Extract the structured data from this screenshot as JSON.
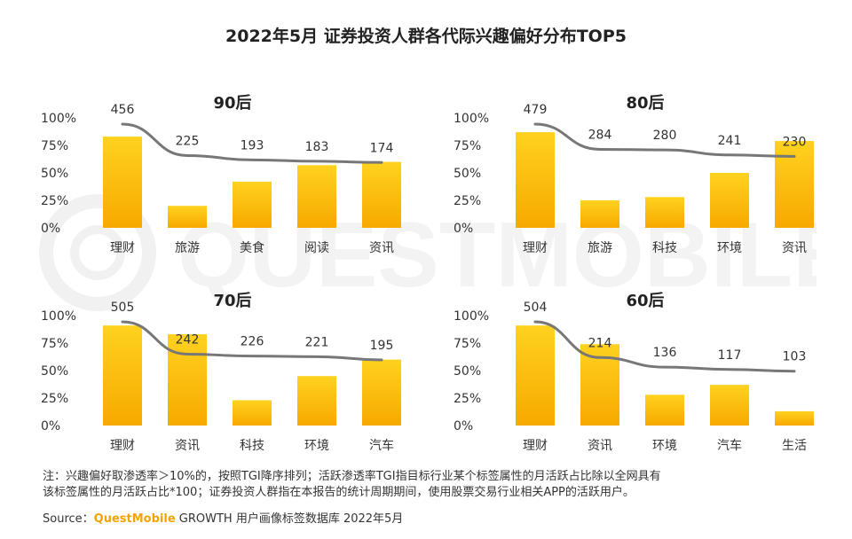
{
  "title": "2022年5月 证券投资人群各代际兴趣偏好分布TOP5",
  "watermark": "QUESTMOBILE",
  "y_ticks": [
    "100%",
    "75%",
    "50%",
    "25%",
    "0%"
  ],
  "notes": [
    "注：兴趣偏好取渗透率＞10%的，按照TGI降序排列；活跃渗透率TGI指目标行业某个标签属性的月活跃占比除以全网具有",
    "该标签属性的月活跃占比*100；证券投资人群指在本报告的统计周期期间，使用股票交易行业相关APP的活跃用户。"
  ],
  "source": {
    "prefix": "Source：",
    "brand": "QuestMobile",
    "suffix": " GROWTH 用户画像标签数据库 2022年5月"
  },
  "colors": {
    "bar_top": "#ffd21f",
    "bar_bottom": "#f7a900",
    "line": "#777777"
  },
  "chart_data": [
    {
      "type": "bar",
      "title": "90后",
      "categories": [
        "理财",
        "旅游",
        "美食",
        "阅读",
        "资讯"
      ],
      "values": [
        83,
        20,
        42,
        57,
        60
      ],
      "line_values": [
        456,
        225,
        193,
        183,
        174
      ],
      "ylim": [
        0,
        100
      ]
    },
    {
      "type": "bar",
      "title": "80后",
      "categories": [
        "理财",
        "旅游",
        "科技",
        "环境",
        "资讯"
      ],
      "values": [
        87,
        25,
        28,
        50,
        79
      ],
      "line_values": [
        479,
        284,
        280,
        241,
        230
      ],
      "ylim": [
        0,
        100
      ]
    },
    {
      "type": "bar",
      "title": "70后",
      "categories": [
        "理财",
        "资讯",
        "科技",
        "环境",
        "汽车"
      ],
      "values": [
        91,
        83,
        23,
        45,
        60
      ],
      "line_values": [
        505,
        242,
        226,
        221,
        195
      ],
      "ylim": [
        0,
        100
      ]
    },
    {
      "type": "bar",
      "title": "60后",
      "categories": [
        "理财",
        "资讯",
        "环境",
        "汽车",
        "生活"
      ],
      "values": [
        91,
        74,
        28,
        37,
        13
      ],
      "line_values": [
        504,
        214,
        136,
        117,
        103
      ],
      "ylim": [
        0,
        100
      ]
    }
  ]
}
